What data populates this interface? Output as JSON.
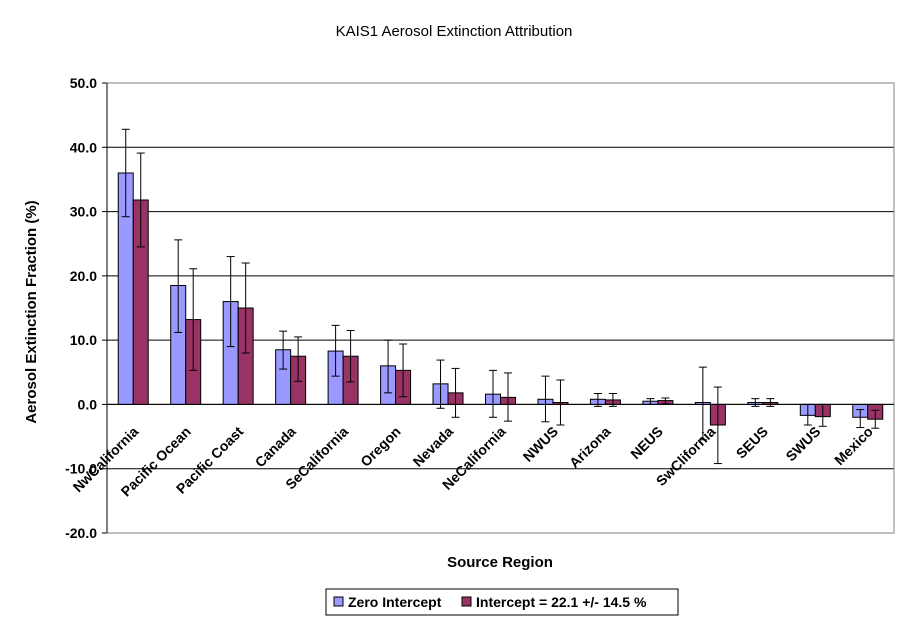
{
  "chart_data": {
    "type": "bar",
    "title": "KAIS1 Aerosol Extinction Attribution",
    "xlabel": "Source Region",
    "ylabel": "Aerosol Extinction Fraction (%)",
    "ylim": [
      -20,
      50
    ],
    "yticks": [
      "50.0",
      "40.0",
      "30.0",
      "20.0",
      "10.0",
      "0.0",
      "-10.0",
      "-20.0"
    ],
    "ytick_values": [
      50,
      40,
      30,
      20,
      10,
      0,
      -10,
      -20
    ],
    "grid": true,
    "legend_position": "bottom",
    "categories": [
      "NwCalifornia",
      "Pacific Ocean",
      "Pacific Coast",
      "Canada",
      "SeCalifornia",
      "Oregon",
      "Nevada",
      "NeCalifornia",
      "NWUS",
      "Arizona",
      "NEUS",
      "SwClifornia",
      "SEUS",
      "SWUS",
      "Mexico"
    ],
    "series": [
      {
        "name": "Zero Intercept",
        "color": "#9999ff",
        "values": [
          36.0,
          18.5,
          16.0,
          8.5,
          8.3,
          6.0,
          3.2,
          1.6,
          0.8,
          0.8,
          0.5,
          0.3,
          0.3,
          -1.7,
          -2.0
        ],
        "error_low": [
          29.2,
          11.2,
          9.0,
          5.5,
          4.4,
          1.8,
          -0.6,
          -2.0,
          -2.7,
          -0.3,
          0.0,
          -5.5,
          -0.3,
          -3.2,
          -3.6
        ],
        "error_high": [
          42.8,
          25.6,
          23.0,
          11.4,
          12.3,
          10.0,
          6.9,
          5.3,
          4.4,
          1.7,
          0.9,
          5.8,
          0.9,
          0.0,
          -0.8
        ]
      },
      {
        "name": "Intercept = 22.1 +/- 14.5 %",
        "color": "#993366",
        "values": [
          31.8,
          13.2,
          15.0,
          7.5,
          7.5,
          5.3,
          1.8,
          1.1,
          0.3,
          0.7,
          0.6,
          -3.2,
          0.3,
          -1.9,
          -2.3
        ],
        "error_low": [
          24.5,
          5.3,
          8.0,
          3.6,
          3.5,
          1.2,
          -2.0,
          -2.6,
          -3.2,
          -0.3,
          0.1,
          -9.2,
          -0.3,
          -3.4,
          -3.7
        ],
        "error_high": [
          39.1,
          21.1,
          22.0,
          10.5,
          11.5,
          9.4,
          5.6,
          4.9,
          3.8,
          1.7,
          1.0,
          2.7,
          0.9,
          0.0,
          -0.9
        ]
      }
    ]
  }
}
